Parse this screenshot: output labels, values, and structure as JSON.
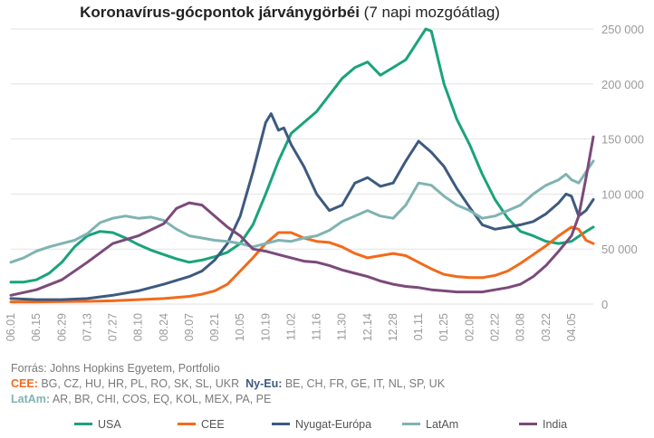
{
  "title": {
    "bold": "Koronavírus-gócpontok járványgörbéi",
    "rest": " (7 napi mozgóátlag)"
  },
  "notes": {
    "source": "Forrás: Johns Hopkins Egyetem, Portfolio",
    "cee_label": "CEE:",
    "cee_list": " BG, CZ, HU, HR, PL, RO, SK, SL, UKR",
    "nyeu_label": "Ny-Eu:",
    "nyeu_list": " BE, CH, FR, GE, IT, NL, SP, UK",
    "latam_label": "LatAm:",
    "latam_list": " AR, BR, CHI, COS, EQ, KOL, MEX, PA, PE"
  },
  "colors": {
    "USA": "#1aa37a",
    "CEE": "#f26a1b",
    "Nyugat-Európa": "#3d5a80",
    "LatAm": "#7fb3b3",
    "India": "#7b4a7a",
    "grid": "#e2e2e2",
    "tick": "#9a9a9a"
  },
  "chart_data": {
    "type": "line",
    "title": "Koronavírus-gócpontok járványgörbéi (7 napi mozgóátlag)",
    "xlabel": "",
    "ylabel": "",
    "ylim": [
      0,
      250000
    ],
    "yticks": [
      0,
      50000,
      100000,
      150000,
      200000,
      250000
    ],
    "ytick_labels": [
      "0",
      "50 000",
      "100 000",
      "150 000",
      "200 000",
      "250 000"
    ],
    "y_axis_side": "right",
    "grid": "horizontal",
    "legend_position": "bottom",
    "x_tick_labels": [
      "06.01",
      "06.15",
      "06.29",
      "07.13",
      "07.27",
      "08.10",
      "08.24",
      "09.07",
      "09.21",
      "10.05",
      "10.19",
      "11.02",
      "11.16",
      "11.30",
      "12.14",
      "12.28",
      "01.11",
      "01.25",
      "02.08",
      "02.22",
      "03.08",
      "03.22",
      "04.05"
    ],
    "x_range_days": [
      0,
      320
    ],
    "x_tick_spacing_days": 14,
    "series": [
      {
        "name": "USA",
        "points": [
          [
            0,
            20000
          ],
          [
            7,
            20000
          ],
          [
            14,
            22000
          ],
          [
            21,
            28000
          ],
          [
            28,
            38000
          ],
          [
            35,
            52000
          ],
          [
            42,
            62000
          ],
          [
            49,
            66000
          ],
          [
            56,
            65000
          ],
          [
            63,
            60000
          ],
          [
            70,
            54000
          ],
          [
            77,
            49000
          ],
          [
            84,
            45000
          ],
          [
            91,
            41000
          ],
          [
            98,
            38000
          ],
          [
            105,
            40000
          ],
          [
            112,
            43000
          ],
          [
            119,
            47000
          ],
          [
            126,
            55000
          ],
          [
            133,
            72000
          ],
          [
            140,
            100000
          ],
          [
            147,
            130000
          ],
          [
            154,
            155000
          ],
          [
            161,
            165000
          ],
          [
            168,
            175000
          ],
          [
            175,
            190000
          ],
          [
            182,
            205000
          ],
          [
            189,
            215000
          ],
          [
            196,
            220000
          ],
          [
            203,
            208000
          ],
          [
            210,
            215000
          ],
          [
            217,
            222000
          ],
          [
            224,
            240000
          ],
          [
            228,
            250000
          ],
          [
            231,
            248000
          ],
          [
            238,
            200000
          ],
          [
            245,
            168000
          ],
          [
            252,
            145000
          ],
          [
            259,
            118000
          ],
          [
            266,
            95000
          ],
          [
            273,
            78000
          ],
          [
            280,
            66000
          ],
          [
            287,
            62000
          ],
          [
            294,
            57000
          ],
          [
            301,
            55000
          ],
          [
            308,
            57000
          ],
          [
            315,
            65000
          ],
          [
            320,
            70000
          ]
        ]
      },
      {
        "name": "CEE",
        "points": [
          [
            0,
            2000
          ],
          [
            14,
            2000
          ],
          [
            28,
            2200
          ],
          [
            42,
            2500
          ],
          [
            56,
            3000
          ],
          [
            70,
            4000
          ],
          [
            84,
            5000
          ],
          [
            98,
            7000
          ],
          [
            105,
            9000
          ],
          [
            112,
            12000
          ],
          [
            119,
            18000
          ],
          [
            126,
            30000
          ],
          [
            133,
            42000
          ],
          [
            140,
            55000
          ],
          [
            147,
            65000
          ],
          [
            154,
            65000
          ],
          [
            161,
            60000
          ],
          [
            168,
            57000
          ],
          [
            175,
            56000
          ],
          [
            182,
            52000
          ],
          [
            189,
            46000
          ],
          [
            196,
            42000
          ],
          [
            203,
            44000
          ],
          [
            210,
            46000
          ],
          [
            217,
            44000
          ],
          [
            224,
            38000
          ],
          [
            231,
            32000
          ],
          [
            238,
            27000
          ],
          [
            245,
            25000
          ],
          [
            252,
            24000
          ],
          [
            259,
            24000
          ],
          [
            266,
            26000
          ],
          [
            273,
            30000
          ],
          [
            280,
            37000
          ],
          [
            287,
            45000
          ],
          [
            294,
            53000
          ],
          [
            301,
            62000
          ],
          [
            308,
            70000
          ],
          [
            312,
            68000
          ],
          [
            316,
            58000
          ],
          [
            320,
            55000
          ]
        ]
      },
      {
        "name": "Nyugat-Európa",
        "points": [
          [
            0,
            5000
          ],
          [
            14,
            4000
          ],
          [
            28,
            4000
          ],
          [
            42,
            5000
          ],
          [
            56,
            8000
          ],
          [
            70,
            12000
          ],
          [
            84,
            18000
          ],
          [
            98,
            25000
          ],
          [
            105,
            30000
          ],
          [
            112,
            40000
          ],
          [
            119,
            55000
          ],
          [
            126,
            80000
          ],
          [
            133,
            120000
          ],
          [
            140,
            165000
          ],
          [
            143,
            173000
          ],
          [
            147,
            158000
          ],
          [
            150,
            160000
          ],
          [
            154,
            145000
          ],
          [
            161,
            125000
          ],
          [
            168,
            100000
          ],
          [
            175,
            85000
          ],
          [
            182,
            90000
          ],
          [
            189,
            110000
          ],
          [
            196,
            115000
          ],
          [
            203,
            107000
          ],
          [
            210,
            110000
          ],
          [
            217,
            130000
          ],
          [
            224,
            148000
          ],
          [
            231,
            138000
          ],
          [
            238,
            125000
          ],
          [
            245,
            105000
          ],
          [
            252,
            88000
          ],
          [
            259,
            72000
          ],
          [
            266,
            68000
          ],
          [
            273,
            70000
          ],
          [
            280,
            72000
          ],
          [
            287,
            75000
          ],
          [
            294,
            82000
          ],
          [
            301,
            92000
          ],
          [
            305,
            100000
          ],
          [
            308,
            98000
          ],
          [
            312,
            80000
          ],
          [
            316,
            85000
          ],
          [
            320,
            95000
          ]
        ]
      },
      {
        "name": "LatAm",
        "points": [
          [
            0,
            38000
          ],
          [
            7,
            42000
          ],
          [
            14,
            48000
          ],
          [
            21,
            52000
          ],
          [
            28,
            55000
          ],
          [
            35,
            58000
          ],
          [
            42,
            64000
          ],
          [
            49,
            74000
          ],
          [
            56,
            78000
          ],
          [
            63,
            80000
          ],
          [
            70,
            78000
          ],
          [
            77,
            79000
          ],
          [
            84,
            76000
          ],
          [
            91,
            68000
          ],
          [
            98,
            62000
          ],
          [
            105,
            60000
          ],
          [
            112,
            58000
          ],
          [
            119,
            57000
          ],
          [
            126,
            55000
          ],
          [
            133,
            52000
          ],
          [
            140,
            55000
          ],
          [
            147,
            58000
          ],
          [
            154,
            57000
          ],
          [
            161,
            60000
          ],
          [
            168,
            62000
          ],
          [
            175,
            67000
          ],
          [
            182,
            75000
          ],
          [
            189,
            80000
          ],
          [
            196,
            85000
          ],
          [
            203,
            80000
          ],
          [
            210,
            78000
          ],
          [
            217,
            90000
          ],
          [
            224,
            110000
          ],
          [
            231,
            108000
          ],
          [
            238,
            98000
          ],
          [
            245,
            90000
          ],
          [
            252,
            85000
          ],
          [
            259,
            78000
          ],
          [
            266,
            80000
          ],
          [
            273,
            85000
          ],
          [
            280,
            90000
          ],
          [
            287,
            100000
          ],
          [
            294,
            108000
          ],
          [
            301,
            113000
          ],
          [
            305,
            118000
          ],
          [
            308,
            113000
          ],
          [
            312,
            110000
          ],
          [
            316,
            120000
          ],
          [
            320,
            130000
          ]
        ]
      },
      {
        "name": "India",
        "points": [
          [
            0,
            8000
          ],
          [
            14,
            13000
          ],
          [
            28,
            22000
          ],
          [
            42,
            38000
          ],
          [
            56,
            55000
          ],
          [
            70,
            62000
          ],
          [
            84,
            73000
          ],
          [
            91,
            87000
          ],
          [
            98,
            92000
          ],
          [
            105,
            90000
          ],
          [
            112,
            80000
          ],
          [
            119,
            70000
          ],
          [
            126,
            62000
          ],
          [
            133,
            50000
          ],
          [
            140,
            48000
          ],
          [
            147,
            45000
          ],
          [
            154,
            42000
          ],
          [
            161,
            39000
          ],
          [
            168,
            38000
          ],
          [
            175,
            35000
          ],
          [
            182,
            31000
          ],
          [
            189,
            28000
          ],
          [
            196,
            25000
          ],
          [
            203,
            21000
          ],
          [
            210,
            18000
          ],
          [
            217,
            16000
          ],
          [
            224,
            15000
          ],
          [
            231,
            13000
          ],
          [
            238,
            12000
          ],
          [
            245,
            11000
          ],
          [
            252,
            11000
          ],
          [
            259,
            11000
          ],
          [
            266,
            13000
          ],
          [
            273,
            15000
          ],
          [
            280,
            18000
          ],
          [
            287,
            25000
          ],
          [
            294,
            35000
          ],
          [
            301,
            48000
          ],
          [
            308,
            62000
          ],
          [
            312,
            80000
          ],
          [
            316,
            115000
          ],
          [
            320,
            152000
          ]
        ]
      }
    ]
  }
}
